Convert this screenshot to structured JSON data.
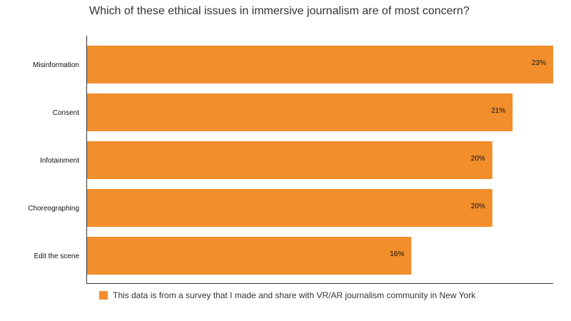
{
  "chart_data": {
    "type": "bar",
    "orientation": "horizontal",
    "title": "Which of these ethical issues in immersive journalism are of most concern?",
    "categories": [
      "Misinformation",
      "Consent",
      "Infotainment",
      "Choreographing",
      "Edit the scene"
    ],
    "values": [
      23,
      21,
      20,
      20,
      16
    ],
    "value_labels": [
      "23%",
      "21%",
      "20%",
      "20%",
      "16%"
    ],
    "xlim": [
      0,
      23
    ],
    "grid": false,
    "legend": {
      "placement": "bottom",
      "label": "This data is from a survey that I made and share with VR/AR journalism community in New York"
    },
    "bar_color": "#f28e2b"
  }
}
